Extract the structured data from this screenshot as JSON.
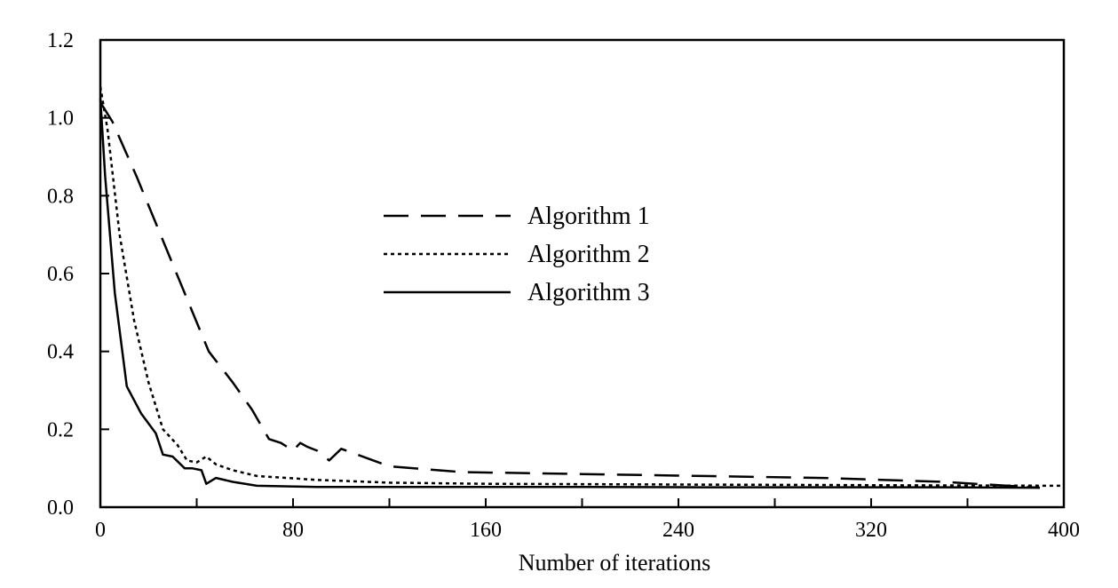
{
  "chart_data": {
    "type": "line",
    "title": "",
    "xlabel": "Number of iterations",
    "ylabel": "",
    "xlim": [
      0,
      400
    ],
    "ylim": [
      0.0,
      1.2
    ],
    "xticks": [
      0,
      80,
      160,
      240,
      320,
      400
    ],
    "xtick_labels": [
      "0",
      "80",
      "160",
      "240",
      "320",
      "400"
    ],
    "yticks": [
      0.0,
      0.2,
      0.4,
      0.6,
      0.8,
      1.0,
      1.2
    ],
    "ytick_labels": [
      "0.0",
      "0.2",
      "0.4",
      "0.6",
      "0.8",
      "1.0",
      "1.2"
    ],
    "grid": false,
    "legend_position": "center",
    "series": [
      {
        "name": "Algorithm 1",
        "style": "dashed",
        "color": "#000000",
        "x": [
          0,
          5,
          15,
          25,
          35,
          45,
          55,
          63,
          70,
          75,
          80,
          83,
          86,
          90,
          95,
          100,
          120,
          150,
          200,
          250,
          300,
          350,
          390
        ],
        "y": [
          1.04,
          0.99,
          0.85,
          0.7,
          0.55,
          0.4,
          0.32,
          0.25,
          0.175,
          0.165,
          0.145,
          0.165,
          0.155,
          0.145,
          0.12,
          0.15,
          0.105,
          0.09,
          0.085,
          0.08,
          0.075,
          0.065,
          0.05
        ]
      },
      {
        "name": "Algorithm 2",
        "style": "dotted",
        "color": "#000000",
        "x": [
          0,
          3,
          8,
          14,
          20,
          26,
          32,
          36,
          40,
          44,
          48,
          55,
          65,
          90,
          120,
          160,
          200,
          250,
          300,
          350,
          400
        ],
        "y": [
          1.08,
          0.97,
          0.7,
          0.48,
          0.32,
          0.2,
          0.16,
          0.12,
          0.115,
          0.13,
          0.11,
          0.095,
          0.08,
          0.07,
          0.063,
          0.06,
          0.059,
          0.058,
          0.057,
          0.056,
          0.055
        ]
      },
      {
        "name": "Algorithm 3",
        "style": "solid",
        "color": "#000000",
        "x": [
          0,
          2,
          6,
          11,
          17,
          23,
          26,
          30,
          35,
          38,
          42,
          44,
          48,
          55,
          65,
          90,
          120,
          160,
          200,
          250,
          300,
          350,
          390
        ],
        "y": [
          1.05,
          0.85,
          0.55,
          0.31,
          0.24,
          0.19,
          0.135,
          0.13,
          0.1,
          0.1,
          0.095,
          0.06,
          0.075,
          0.065,
          0.055,
          0.052,
          0.052,
          0.052,
          0.052,
          0.051,
          0.051,
          0.051,
          0.05
        ]
      }
    ]
  }
}
